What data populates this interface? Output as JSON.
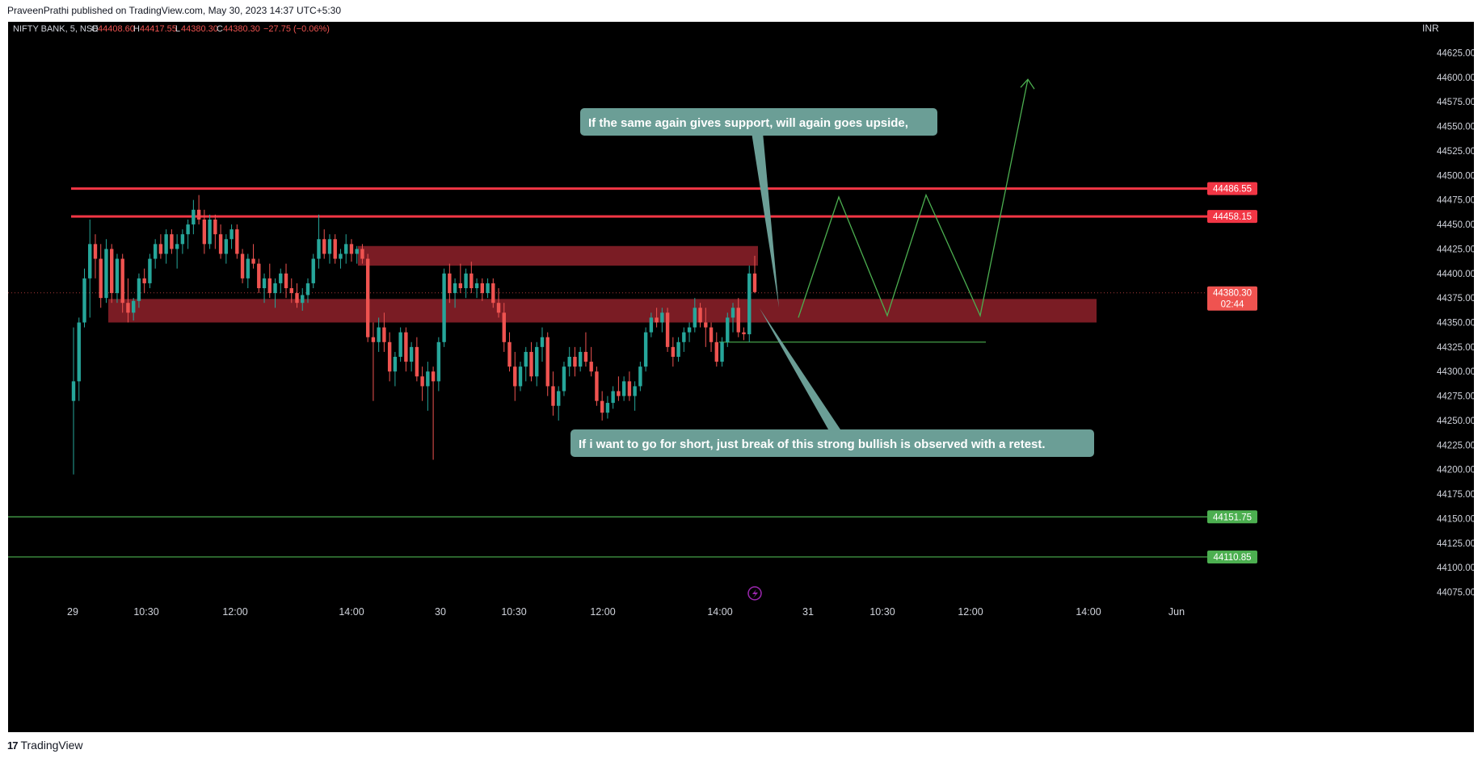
{
  "header": {
    "published": "PraveenPrathi published on TradingView.com, May 30, 2023 14:37 UTC+5:30"
  },
  "footer": {
    "brand": "TradingView",
    "logo_mark": "17"
  },
  "colors": {
    "background": "#000000",
    "up": "#26a69a",
    "down": "#ef5350",
    "resistance": "#f23645",
    "support_line": "#4caf50",
    "zone": "#7a1c24",
    "callout": "#6b9e96",
    "projection": "#4caf50"
  },
  "chart_data": {
    "type": "candlestick",
    "symbol_info": {
      "symbol": "NIFTY BANK, 5, NSE",
      "o_label": "O",
      "open": "44408.60",
      "h_label": "H",
      "high": "44417.55",
      "l_label": "L",
      "low": "44380.30",
      "c_label": "C",
      "close": "44380.30",
      "change": "−27.75 (−0.06%)"
    },
    "currency": "INR",
    "ylim": [
      44068,
      44632
    ],
    "y_ticks": [
      "44625.00",
      "44600.00",
      "44575.00",
      "44550.00",
      "44525.00",
      "44500.00",
      "44475.00",
      "44450.00",
      "44425.00",
      "44400.00",
      "44375.00",
      "44350.00",
      "44325.00",
      "44300.00",
      "44275.00",
      "44250.00",
      "44225.00",
      "44200.00",
      "44175.00",
      "44150.00",
      "44125.00",
      "44100.00",
      "44075.00"
    ],
    "x_ticks": [
      "29",
      "10:30",
      "12:00",
      "14:00",
      "30",
      "10:30",
      "12:00",
      "14:00",
      "31",
      "10:30",
      "12:00",
      "14:00",
      "Jun"
    ],
    "candles": [
      [
        44270,
        44345,
        44195,
        44290
      ],
      [
        44290,
        44355,
        44270,
        44350
      ],
      [
        44350,
        44405,
        44345,
        44395
      ],
      [
        44395,
        44455,
        44355,
        44430
      ],
      [
        44430,
        44440,
        44395,
        44415
      ],
      [
        44415,
        44430,
        44365,
        44375
      ],
      [
        44375,
        44435,
        44370,
        44425
      ],
      [
        44425,
        44430,
        44370,
        44380
      ],
      [
        44380,
        44420,
        44370,
        44415
      ],
      [
        44415,
        44420,
        44360,
        44370
      ],
      [
        44370,
        44395,
        44350,
        44360
      ],
      [
        44360,
        44375,
        44352,
        44372
      ],
      [
        44372,
        44400,
        44365,
        44395
      ],
      [
        44395,
        44405,
        44380,
        44390
      ],
      [
        44390,
        44420,
        44385,
        44415
      ],
      [
        44415,
        44435,
        44405,
        44430
      ],
      [
        44430,
        44440,
        44415,
        44420
      ],
      [
        44420,
        44445,
        44410,
        44440
      ],
      [
        44440,
        44445,
        44420,
        44425
      ],
      [
        44425,
        44440,
        44405,
        44430
      ],
      [
        44430,
        44445,
        44420,
        44440
      ],
      [
        44440,
        44455,
        44425,
        44450
      ],
      [
        44450,
        44475,
        44440,
        44465
      ],
      [
        44465,
        44480,
        44450,
        44455
      ],
      [
        44455,
        44465,
        44420,
        44430
      ],
      [
        44430,
        44460,
        44425,
        44455
      ],
      [
        44455,
        44460,
        44425,
        44440
      ],
      [
        44440,
        44450,
        44415,
        44420
      ],
      [
        44420,
        44440,
        44410,
        44435
      ],
      [
        44435,
        44450,
        44425,
        44445
      ],
      [
        44445,
        44450,
        44415,
        44420
      ],
      [
        44420,
        44425,
        44390,
        44395
      ],
      [
        44395,
        44420,
        44385,
        44415
      ],
      [
        44415,
        44430,
        44405,
        44410
      ],
      [
        44410,
        44415,
        44380,
        44385
      ],
      [
        44385,
        44400,
        44370,
        44395
      ],
      [
        44395,
        44410,
        44375,
        44380
      ],
      [
        44380,
        44395,
        44365,
        44390
      ],
      [
        44390,
        44405,
        44380,
        44400
      ],
      [
        44400,
        44410,
        44375,
        44385
      ],
      [
        44385,
        44395,
        44370,
        44380
      ],
      [
        44380,
        44390,
        44365,
        44370
      ],
      [
        44370,
        44385,
        44362,
        44378
      ],
      [
        44378,
        44395,
        44370,
        44390
      ],
      [
        44390,
        44420,
        44385,
        44415
      ],
      [
        44415,
        44460,
        44405,
        44435
      ],
      [
        44435,
        44445,
        44415,
        44420
      ],
      [
        44420,
        44440,
        44410,
        44435
      ],
      [
        44435,
        44440,
        44410,
        44415
      ],
      [
        44415,
        44425,
        44405,
        44420
      ],
      [
        44420,
        44440,
        44410,
        44430
      ],
      [
        44430,
        44435,
        44412,
        44420
      ],
      [
        44420,
        44428,
        44410,
        44425
      ],
      [
        44425,
        44430,
        44410,
        44415
      ],
      [
        44415,
        44420,
        44330,
        44335
      ],
      [
        44335,
        44350,
        44270,
        44330
      ],
      [
        44330,
        44355,
        44320,
        44345
      ],
      [
        44345,
        44360,
        44320,
        44330
      ],
      [
        44330,
        44340,
        44290,
        44300
      ],
      [
        44300,
        44320,
        44285,
        44315
      ],
      [
        44315,
        44345,
        44310,
        44340
      ],
      [
        44340,
        44345,
        44300,
        44310
      ],
      [
        44310,
        44330,
        44300,
        44325
      ],
      [
        44325,
        44335,
        44290,
        44295
      ],
      [
        44295,
        44305,
        44270,
        44285
      ],
      [
        44285,
        44310,
        44260,
        44300
      ],
      [
        44300,
        44305,
        44210,
        44290
      ],
      [
        44290,
        44335,
        44280,
        44330
      ],
      [
        44330,
        44405,
        44325,
        44400
      ],
      [
        44400,
        44410,
        44370,
        44380
      ],
      [
        44380,
        44395,
        44365,
        44390
      ],
      [
        44390,
        44410,
        44380,
        44385
      ],
      [
        44385,
        44405,
        44375,
        44400
      ],
      [
        44400,
        44412,
        44380,
        44385
      ],
      [
        44385,
        44395,
        44375,
        44390
      ],
      [
        44390,
        44395,
        44372,
        44380
      ],
      [
        44380,
        44395,
        44375,
        44390
      ],
      [
        44390,
        44395,
        44365,
        44370
      ],
      [
        44370,
        44385,
        44355,
        44360
      ],
      [
        44360,
        44370,
        44320,
        44330
      ],
      [
        44330,
        44340,
        44300,
        44305
      ],
      [
        44305,
        44320,
        44270,
        44285
      ],
      [
        44285,
        44310,
        44280,
        44305
      ],
      [
        44305,
        44325,
        44290,
        44320
      ],
      [
        44320,
        44330,
        44290,
        44295
      ],
      [
        44295,
        44330,
        44285,
        44325
      ],
      [
        44325,
        44345,
        44310,
        44335
      ],
      [
        44335,
        44340,
        44275,
        44285
      ],
      [
        44285,
        44300,
        44255,
        44265
      ],
      [
        44265,
        44285,
        44250,
        44280
      ],
      [
        44280,
        44310,
        44275,
        44305
      ],
      [
        44305,
        44325,
        44295,
        44315
      ],
      [
        44315,
        44325,
        44295,
        44305
      ],
      [
        44305,
        44325,
        44300,
        44320
      ],
      [
        44320,
        44340,
        44305,
        44310
      ],
      [
        44310,
        44325,
        44295,
        44300
      ],
      [
        44300,
        44305,
        44265,
        44270
      ],
      [
        44270,
        44280,
        44250,
        44258
      ],
      [
        44258,
        44275,
        44252,
        44268
      ],
      [
        44268,
        44285,
        44262,
        44280
      ],
      [
        44280,
        44295,
        44270,
        44275
      ],
      [
        44275,
        44295,
        44270,
        44290
      ],
      [
        44290,
        44300,
        44270,
        44275
      ],
      [
        44275,
        44290,
        44260,
        44285
      ],
      [
        44285,
        44310,
        44280,
        44305
      ],
      [
        44305,
        44345,
        44300,
        44340
      ],
      [
        44340,
        44360,
        44335,
        44355
      ],
      [
        44355,
        44365,
        44345,
        44350
      ],
      [
        44350,
        44365,
        44340,
        44360
      ],
      [
        44360,
        44365,
        44320,
        44325
      ],
      [
        44325,
        44335,
        44305,
        44315
      ],
      [
        44315,
        44335,
        44310,
        44330
      ],
      [
        44330,
        44345,
        44320,
        44340
      ],
      [
        44340,
        44350,
        44330,
        44345
      ],
      [
        44345,
        44375,
        44340,
        44365
      ],
      [
        44365,
        44370,
        44345,
        44350
      ],
      [
        44350,
        44365,
        44325,
        44345
      ],
      [
        44345,
        44350,
        44320,
        44330
      ],
      [
        44330,
        44340,
        44305,
        44310
      ],
      [
        44310,
        44335,
        44305,
        44330
      ],
      [
        44330,
        44360,
        44325,
        44355
      ],
      [
        44355,
        44370,
        44340,
        44365
      ],
      [
        44365,
        44375,
        44335,
        44340
      ],
      [
        44340,
        44345,
        44332,
        44338
      ],
      [
        44338,
        44408,
        44330,
        44400
      ],
      [
        44400,
        44418,
        44380,
        44381
      ]
    ],
    "levels": [
      {
        "price": 44486.55,
        "label": "44486.55"
      },
      {
        "price": 44458.15,
        "label": "44458.15"
      },
      {
        "price": 44151.75,
        "label": "44151.75"
      },
      {
        "price": 44110.85,
        "label": "44110.85"
      }
    ],
    "last_price": {
      "label": "44380.30",
      "countdown": "02:44"
    },
    "zones": [
      {
        "top": 44428,
        "bottom": 44408
      },
      {
        "top": 44374,
        "bottom": 44350
      }
    ],
    "short_target_level": 44330,
    "projection_path": [
      [
        44355,
        44478,
        44357,
        44480,
        44357,
        44598
      ]
    ],
    "annotations": {
      "upper": "If the same again gives support, will again goes upside,",
      "lower": "If i want to go for short, just break of this strong bullish is observed with a retest."
    }
  }
}
